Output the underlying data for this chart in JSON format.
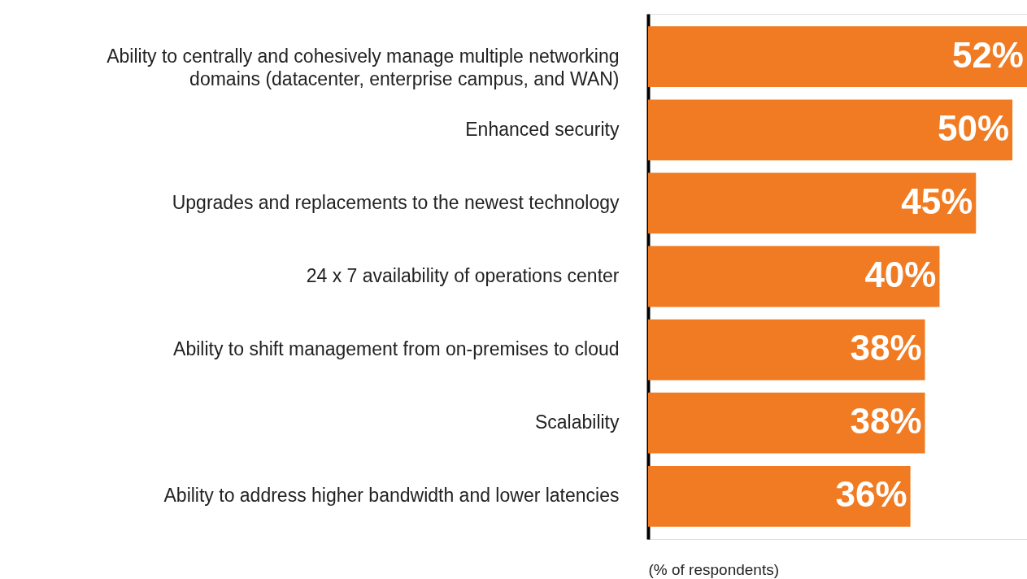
{
  "chart_data": {
    "type": "bar",
    "orientation": "horizontal",
    "categories": [
      "Ability to centrally and cohesively manage multiple networking\ndomains (datacenter, enterprise campus, and WAN)",
      "Enhanced security",
      "Upgrades and replacements to the newest technology",
      "24 x 7 availability of operations center",
      "Ability to shift management from on-premises to cloud",
      "Scalability",
      "Ability to address higher bandwidth and lower latencies"
    ],
    "values": [
      52,
      50,
      45,
      40,
      38,
      38,
      36
    ],
    "value_labels": [
      "52%",
      "50%",
      "45%",
      "40%",
      "38%",
      "38%",
      "36%"
    ],
    "color": "#f07b22",
    "xlim": [
      0,
      52
    ],
    "xlabel": "(% of respondents)",
    "grid": false
  }
}
